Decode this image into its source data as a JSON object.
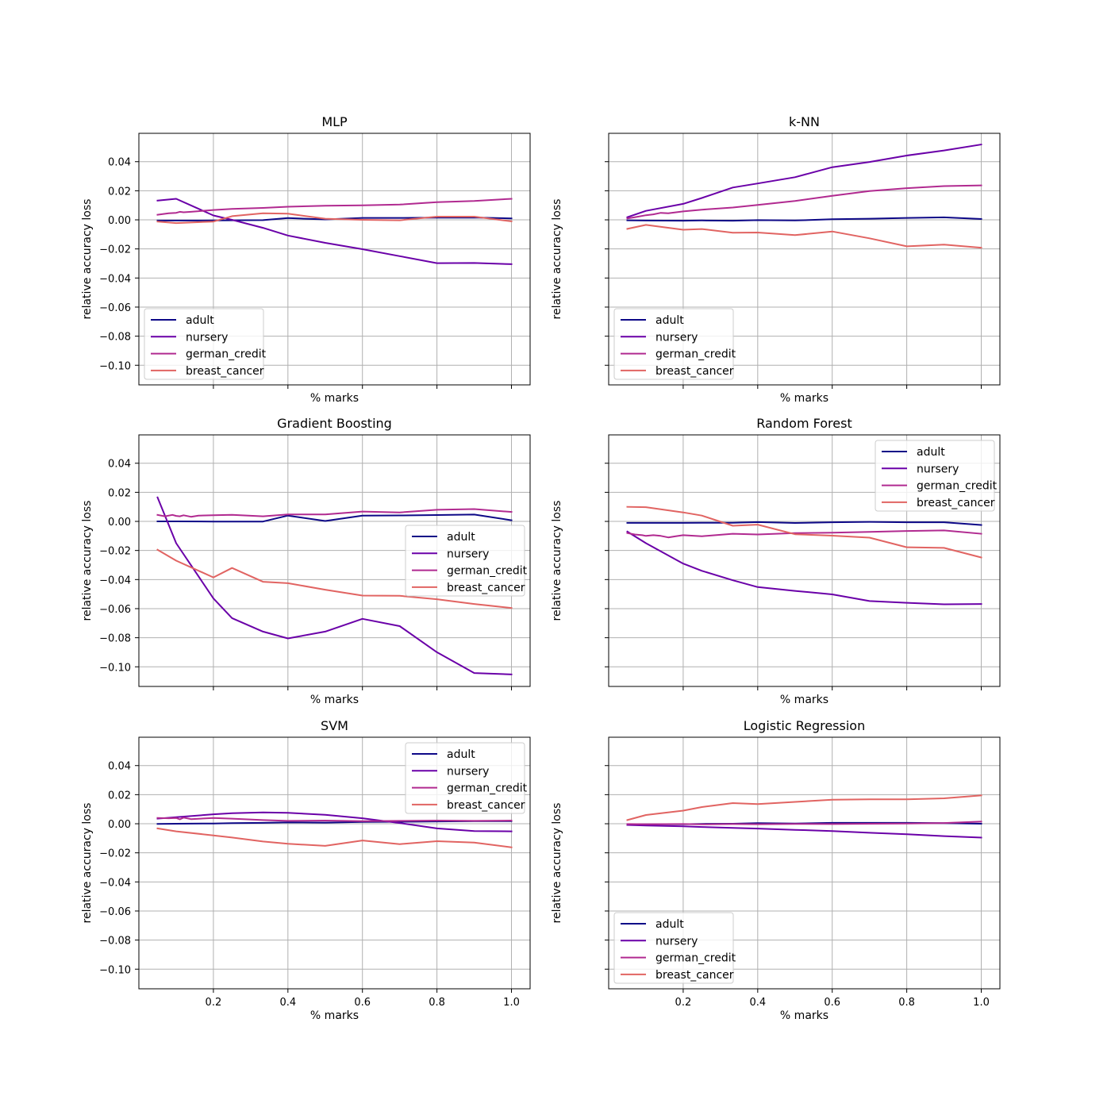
{
  "figure": {
    "series_colors": {
      "adult": "#0d0887",
      "nursery": "#6a00a8",
      "german_credit": "#b12a90",
      "breast_cancer": "#e16462"
    }
  },
  "chart_data": [
    {
      "type": "line",
      "title": "MLP",
      "xlabel": "% marks",
      "ylabel": "relative accuracy loss",
      "xlim": [
        0.0,
        1.05
      ],
      "ylim": [
        -0.1135,
        0.0595
      ],
      "xticks": [
        0.2,
        0.4,
        0.6,
        0.8,
        1.0
      ],
      "xtick_labels_visible": false,
      "yticks": [
        -0.1,
        -0.08,
        -0.06,
        -0.04,
        -0.02,
        0.0,
        0.02,
        0.04
      ],
      "ytick_labels": [
        "−0.10",
        "−0.08",
        "−0.06",
        "−0.04",
        "−0.02",
        "0.00",
        "0.02",
        "0.04"
      ],
      "ytick_labels_visible": true,
      "grid": true,
      "legend_position": "lower-left",
      "series": [
        {
          "name": "adult",
          "x": [
            0.05,
            0.1,
            0.2,
            0.25,
            0.333,
            0.4,
            0.5,
            0.6,
            0.7,
            0.8,
            0.9,
            1.0
          ],
          "y": [
            -0.0005,
            -0.0005,
            -0.0004,
            -0.0003,
            -0.0002,
            0.0012,
            0.0003,
            0.0013,
            0.0013,
            0.0015,
            0.0016,
            0.001
          ]
        },
        {
          "name": "nursery",
          "x": [
            0.05,
            0.1,
            0.2,
            0.25,
            0.333,
            0.4,
            0.5,
            0.6,
            0.7,
            0.8,
            0.9,
            1.0
          ],
          "y": [
            0.0132,
            0.0145,
            0.003,
            0.0,
            -0.0055,
            -0.0108,
            -0.0158,
            -0.0202,
            -0.025,
            -0.0298,
            -0.0297,
            -0.0305
          ]
        },
        {
          "name": "german_credit",
          "x": [
            0.05,
            0.08,
            0.1,
            0.11,
            0.12,
            0.14,
            0.2,
            0.25,
            0.333,
            0.4,
            0.5,
            0.6,
            0.7,
            0.8,
            0.9,
            1.0
          ],
          "y": [
            0.0035,
            0.0045,
            0.0048,
            0.0055,
            0.0052,
            0.0055,
            0.0068,
            0.0075,
            0.0082,
            0.009,
            0.0097,
            0.01,
            0.0105,
            0.0122,
            0.013,
            0.0145
          ]
        },
        {
          "name": "breast_cancer",
          "x": [
            0.05,
            0.1,
            0.2,
            0.25,
            0.333,
            0.4,
            0.5,
            0.6,
            0.7,
            0.8,
            0.9,
            1.0
          ],
          "y": [
            -0.0012,
            -0.0022,
            -0.0012,
            0.0025,
            0.0045,
            0.0042,
            0.0008,
            0.0,
            -0.0003,
            0.0022,
            0.0022,
            -0.001
          ]
        }
      ]
    },
    {
      "type": "line",
      "title": "k-NN",
      "xlabel": "% marks",
      "ylabel": "relative accuracy loss",
      "xlim": [
        0.0,
        1.05
      ],
      "ylim": [
        -0.1135,
        0.0595
      ],
      "xticks": [
        0.2,
        0.4,
        0.6,
        0.8,
        1.0
      ],
      "xtick_labels_visible": false,
      "yticks": [
        -0.1,
        -0.08,
        -0.06,
        -0.04,
        -0.02,
        0.0,
        0.02,
        0.04
      ],
      "ytick_labels_visible": false,
      "grid": true,
      "legend_position": "lower-left",
      "series": [
        {
          "name": "adult",
          "x": [
            0.05,
            0.1,
            0.2,
            0.25,
            0.333,
            0.4,
            0.5,
            0.6,
            0.7,
            0.8,
            0.9,
            1.0
          ],
          "y": [
            -0.0003,
            -0.0005,
            -0.0006,
            -0.0004,
            -0.0006,
            -0.0002,
            -0.0004,
            0.0004,
            0.0008,
            0.0013,
            0.0017,
            0.0006
          ]
        },
        {
          "name": "nursery",
          "x": [
            0.05,
            0.1,
            0.2,
            0.25,
            0.333,
            0.4,
            0.5,
            0.6,
            0.7,
            0.8,
            0.9,
            1.0
          ],
          "y": [
            0.0018,
            0.0062,
            0.011,
            0.015,
            0.0222,
            0.025,
            0.0293,
            0.0362,
            0.0398,
            0.0442,
            0.0477,
            0.0518
          ]
        },
        {
          "name": "german_credit",
          "x": [
            0.05,
            0.07,
            0.1,
            0.12,
            0.14,
            0.16,
            0.2,
            0.25,
            0.333,
            0.4,
            0.5,
            0.6,
            0.7,
            0.8,
            0.9,
            1.0
          ],
          "y": [
            0.001,
            0.0018,
            0.0032,
            0.0038,
            0.0048,
            0.0045,
            0.0058,
            0.007,
            0.0085,
            0.0102,
            0.013,
            0.0165,
            0.0198,
            0.0218,
            0.0232,
            0.0237
          ]
        },
        {
          "name": "breast_cancer",
          "x": [
            0.05,
            0.1,
            0.2,
            0.25,
            0.333,
            0.4,
            0.5,
            0.6,
            0.7,
            0.8,
            0.9,
            1.0
          ],
          "y": [
            -0.0062,
            -0.0035,
            -0.0068,
            -0.0063,
            -0.0088,
            -0.0087,
            -0.0105,
            -0.008,
            -0.0127,
            -0.0182,
            -0.017,
            -0.0192
          ]
        }
      ]
    },
    {
      "type": "line",
      "title": "Gradient Boosting",
      "xlabel": "% marks",
      "ylabel": "relative accuracy loss",
      "xlim": [
        0.0,
        1.05
      ],
      "ylim": [
        -0.1135,
        0.0595
      ],
      "xticks": [
        0.2,
        0.4,
        0.6,
        0.8,
        1.0
      ],
      "xtick_labels_visible": false,
      "yticks": [
        -0.1,
        -0.08,
        -0.06,
        -0.04,
        -0.02,
        0.0,
        0.02,
        0.04
      ],
      "ytick_labels": [
        "−0.10",
        "−0.08",
        "−0.06",
        "−0.04",
        "−0.02",
        "0.00",
        "0.02",
        "0.04"
      ],
      "ytick_labels_visible": true,
      "grid": true,
      "legend_position": "center-right",
      "series": [
        {
          "name": "adult",
          "x": [
            0.05,
            0.1,
            0.2,
            0.25,
            0.333,
            0.4,
            0.5,
            0.6,
            0.7,
            0.8,
            0.9,
            1.0
          ],
          "y": [
            0.0,
            0.0,
            -0.0001,
            -0.0001,
            -0.0001,
            0.004,
            0.0003,
            0.004,
            0.0041,
            0.0044,
            0.0047,
            0.0008
          ]
        },
        {
          "name": "nursery",
          "x": [
            0.05,
            0.1,
            0.2,
            0.25,
            0.333,
            0.4,
            0.5,
            0.6,
            0.7,
            0.8,
            0.9,
            1.0
          ],
          "y": [
            0.0165,
            -0.015,
            -0.053,
            -0.0665,
            -0.0758,
            -0.0805,
            -0.0758,
            -0.067,
            -0.072,
            -0.09,
            -0.1043,
            -0.1052
          ]
        },
        {
          "name": "german_credit",
          "x": [
            0.05,
            0.07,
            0.09,
            0.1,
            0.11,
            0.12,
            0.14,
            0.16,
            0.2,
            0.25,
            0.333,
            0.4,
            0.5,
            0.6,
            0.7,
            0.8,
            0.9,
            1.0
          ],
          "y": [
            0.0045,
            0.0035,
            0.0045,
            0.0038,
            0.0035,
            0.0042,
            0.0032,
            0.004,
            0.0042,
            0.0045,
            0.0035,
            0.0048,
            0.0048,
            0.0068,
            0.0062,
            0.008,
            0.0085,
            0.0065
          ]
        },
        {
          "name": "breast_cancer",
          "x": [
            0.05,
            0.1,
            0.2,
            0.25,
            0.333,
            0.4,
            0.5,
            0.6,
            0.7,
            0.8,
            0.9,
            1.0
          ],
          "y": [
            -0.0195,
            -0.027,
            -0.0385,
            -0.032,
            -0.0415,
            -0.0425,
            -0.047,
            -0.051,
            -0.0512,
            -0.0535,
            -0.0568,
            -0.0595
          ]
        }
      ]
    },
    {
      "type": "line",
      "title": "Random Forest",
      "xlabel": "% marks",
      "ylabel": "relative accuracy loss",
      "xlim": [
        0.0,
        1.05
      ],
      "ylim": [
        -0.1135,
        0.0595
      ],
      "xticks": [
        0.2,
        0.4,
        0.6,
        0.8,
        1.0
      ],
      "xtick_labels_visible": false,
      "yticks": [
        -0.1,
        -0.08,
        -0.06,
        -0.04,
        -0.02,
        0.0,
        0.02,
        0.04
      ],
      "ytick_labels_visible": false,
      "grid": true,
      "legend_position": "upper-right",
      "series": [
        {
          "name": "adult",
          "x": [
            0.05,
            0.1,
            0.2,
            0.25,
            0.333,
            0.4,
            0.5,
            0.6,
            0.7,
            0.8,
            0.9,
            1.0
          ],
          "y": [
            -0.001,
            -0.001,
            -0.001,
            -0.0009,
            -0.0009,
            -0.0005,
            -0.0011,
            -0.0006,
            -0.0003,
            -0.0006,
            -0.0006,
            -0.0025
          ]
        },
        {
          "name": "nursery",
          "x": [
            0.05,
            0.1,
            0.2,
            0.25,
            0.333,
            0.4,
            0.5,
            0.6,
            0.7,
            0.8,
            0.9,
            1.0
          ],
          "y": [
            -0.007,
            -0.015,
            -0.029,
            -0.034,
            -0.0405,
            -0.0452,
            -0.0478,
            -0.0502,
            -0.0548,
            -0.056,
            -0.057,
            -0.0568
          ]
        },
        {
          "name": "german_credit",
          "x": [
            0.05,
            0.07,
            0.09,
            0.1,
            0.12,
            0.14,
            0.16,
            0.18,
            0.2,
            0.25,
            0.333,
            0.4,
            0.5,
            0.6,
            0.7,
            0.8,
            0.9,
            1.0
          ],
          "y": [
            -0.008,
            -0.009,
            -0.0095,
            -0.01,
            -0.0095,
            -0.01,
            -0.011,
            -0.0102,
            -0.0095,
            -0.0102,
            -0.0085,
            -0.009,
            -0.008,
            -0.0078,
            -0.0072,
            -0.0066,
            -0.0062,
            -0.0085
          ]
        },
        {
          "name": "breast_cancer",
          "x": [
            0.05,
            0.1,
            0.2,
            0.25,
            0.333,
            0.4,
            0.5,
            0.6,
            0.7,
            0.8,
            0.9,
            1.0
          ],
          "y": [
            0.01,
            0.0098,
            0.0062,
            0.004,
            -0.003,
            -0.0022,
            -0.0088,
            -0.0098,
            -0.0112,
            -0.0178,
            -0.0182,
            -0.0248
          ]
        }
      ]
    },
    {
      "type": "line",
      "title": "SVM",
      "xlabel": "% marks",
      "ylabel": "relative accuracy loss",
      "xlim": [
        0.0,
        1.05
      ],
      "ylim": [
        -0.1135,
        0.0595
      ],
      "xticks": [
        0.2,
        0.4,
        0.6,
        0.8,
        1.0
      ],
      "xtick_labels": [
        "0.2",
        "0.4",
        "0.6",
        "0.8",
        "1.0"
      ],
      "xtick_labels_visible": true,
      "yticks": [
        -0.1,
        -0.08,
        -0.06,
        -0.04,
        -0.02,
        0.0,
        0.02,
        0.04
      ],
      "ytick_labels": [
        "−0.10",
        "−0.08",
        "−0.06",
        "−0.04",
        "−0.02",
        "0.00",
        "0.02",
        "0.04"
      ],
      "ytick_labels_visible": true,
      "grid": true,
      "legend_position": "upper-right",
      "series": [
        {
          "name": "adult",
          "x": [
            0.05,
            0.1,
            0.2,
            0.25,
            0.333,
            0.4,
            0.5,
            0.6,
            0.7,
            0.8,
            0.9,
            1.0
          ],
          "y": [
            -0.0001,
            0.0,
            0.0002,
            0.0004,
            0.0006,
            0.001,
            0.0008,
            0.0012,
            0.0014,
            0.0016,
            0.0018,
            0.0018
          ]
        },
        {
          "name": "nursery",
          "x": [
            0.05,
            0.1,
            0.2,
            0.25,
            0.333,
            0.4,
            0.5,
            0.6,
            0.7,
            0.8,
            0.9,
            1.0
          ],
          "y": [
            0.0035,
            0.0045,
            0.0065,
            0.0072,
            0.0078,
            0.0075,
            0.0062,
            0.0038,
            0.0005,
            -0.0032,
            -0.005,
            -0.0052
          ]
        },
        {
          "name": "german_credit",
          "x": [
            0.05,
            0.08,
            0.1,
            0.11,
            0.12,
            0.14,
            0.2,
            0.25,
            0.333,
            0.4,
            0.5,
            0.6,
            0.7,
            0.8,
            0.9,
            1.0
          ],
          "y": [
            0.004,
            0.0038,
            0.004,
            0.003,
            0.0042,
            0.0032,
            0.004,
            0.0035,
            0.0025,
            0.002,
            0.0022,
            0.0018,
            0.002,
            0.0022,
            0.002,
            0.0022
          ]
        },
        {
          "name": "breast_cancer",
          "x": [
            0.05,
            0.1,
            0.2,
            0.25,
            0.333,
            0.4,
            0.5,
            0.6,
            0.7,
            0.8,
            0.9,
            1.0
          ],
          "y": [
            -0.0032,
            -0.0052,
            -0.008,
            -0.0095,
            -0.0122,
            -0.0138,
            -0.0152,
            -0.0115,
            -0.014,
            -0.012,
            -0.013,
            -0.0162
          ]
        }
      ]
    },
    {
      "type": "line",
      "title": "Logistic Regression",
      "xlabel": "% marks",
      "ylabel": "relative accuracy loss",
      "xlim": [
        0.0,
        1.05
      ],
      "ylim": [
        -0.1135,
        0.0595
      ],
      "xticks": [
        0.2,
        0.4,
        0.6,
        0.8,
        1.0
      ],
      "xtick_labels": [
        "0.2",
        "0.4",
        "0.6",
        "0.8",
        "1.0"
      ],
      "xtick_labels_visible": true,
      "yticks": [
        -0.1,
        -0.08,
        -0.06,
        -0.04,
        -0.02,
        0.0,
        0.02,
        0.04
      ],
      "ytick_labels_visible": false,
      "grid": true,
      "legend_position": "lower-left",
      "series": [
        {
          "name": "adult",
          "x": [
            0.05,
            0.1,
            0.2,
            0.25,
            0.333,
            0.4,
            0.5,
            0.6,
            0.7,
            0.8,
            0.9,
            1.0
          ],
          "y": [
            -0.0005,
            -0.0004,
            -0.0003,
            -0.0001,
            0.0,
            0.0004,
            0.0002,
            0.0006,
            0.0006,
            0.0006,
            0.0004,
            0.0
          ]
        },
        {
          "name": "nursery",
          "x": [
            0.05,
            0.1,
            0.2,
            0.25,
            0.333,
            0.4,
            0.5,
            0.6,
            0.7,
            0.8,
            0.9,
            1.0
          ],
          "y": [
            -0.0008,
            -0.0012,
            -0.0018,
            -0.0022,
            -0.0028,
            -0.0033,
            -0.0042,
            -0.005,
            -0.0062,
            -0.0072,
            -0.0085,
            -0.0095
          ]
        },
        {
          "name": "german_credit",
          "x": [
            0.05,
            0.1,
            0.2,
            0.25,
            0.333,
            0.4,
            0.5,
            0.6,
            0.7,
            0.8,
            0.9,
            1.0
          ],
          "y": [
            -0.0002,
            -0.0003,
            -0.0002,
            -0.0004,
            -0.0002,
            -0.0003,
            -0.0001,
            -0.0002,
            0.0,
            0.0002,
            0.0005,
            0.0015
          ]
        },
        {
          "name": "breast_cancer",
          "x": [
            0.05,
            0.1,
            0.2,
            0.25,
            0.333,
            0.4,
            0.5,
            0.6,
            0.7,
            0.8,
            0.9,
            1.0
          ],
          "y": [
            0.0025,
            0.006,
            0.009,
            0.0115,
            0.0142,
            0.0135,
            0.015,
            0.0165,
            0.0168,
            0.0168,
            0.0175,
            0.0195
          ]
        }
      ]
    }
  ]
}
